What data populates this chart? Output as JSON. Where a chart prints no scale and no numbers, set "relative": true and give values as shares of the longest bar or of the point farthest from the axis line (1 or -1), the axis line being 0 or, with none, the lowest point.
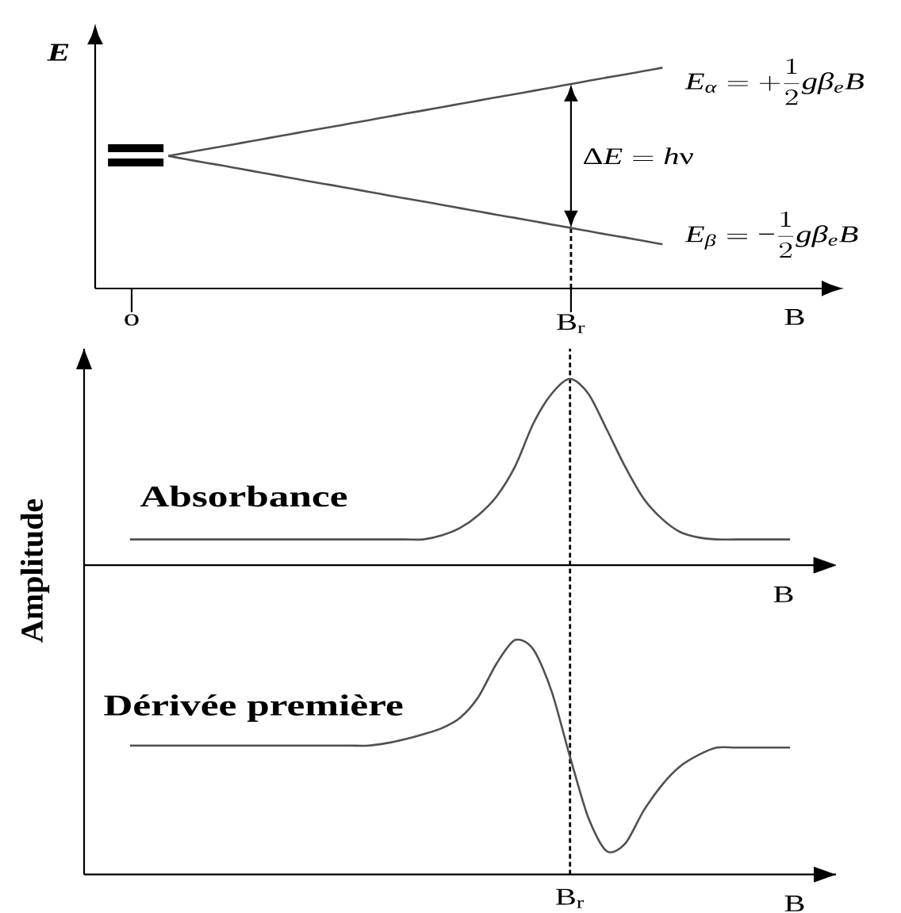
{
  "chart_data": [
    {
      "type": "line",
      "relative": true,
      "xlabel": "B",
      "ylabel": "E",
      "categories": [
        "o",
        null,
        null,
        null,
        null,
        null,
        null,
        null,
        null,
        null,
        null,
        null,
        null,
        null,
        null,
        null,
        null,
        null,
        null,
        null,
        null,
        null,
        null,
        null,
        "B$_{r}$",
        null,
        null,
        null,
        null,
        null
      ],
      "series": [
        {
          "name": "E_{\\alpha} = +\\frac{1}{2}g\\beta_{e}B",
          "color": "#505050",
          "values": [
            null,
            null,
            0.6,
            0.615,
            0.63,
            0.644,
            0.659,
            0.674,
            0.689,
            0.704,
            0.719,
            0.733,
            0.748,
            0.763,
            0.778,
            0.793,
            0.807,
            0.822,
            0.837,
            0.852,
            0.867,
            0.881,
            0.896,
            0.911,
            0.926,
            0.941,
            0.956,
            0.97,
            0.985,
            1.0
          ]
        },
        {
          "name": "E_{\\beta} = −\\frac{1}{2}g\\beta_{e}B",
          "color": "#505050",
          "values": [
            null,
            null,
            0.6,
            0.585,
            0.57,
            0.556,
            0.541,
            0.526,
            0.511,
            0.496,
            0.481,
            0.467,
            0.452,
            0.437,
            0.422,
            0.407,
            0.393,
            0.378,
            0.363,
            0.348,
            0.333,
            0.319,
            0.304,
            0.289,
            0.274,
            0.259,
            0.244,
            0.23,
            0.215,
            0.2
          ]
        }
      ],
      "annotations": [
        "\\Delta E = h\\nu"
      ],
      "ref_lines": [
        {
          "axis": "x",
          "value": "B$_{r}$",
          "line_style": "dashed",
          "color": "#000000"
        }
      ]
    },
    {
      "type": "line",
      "relative": true,
      "xlabel": "B",
      "ylabel": "Amplitude",
      "categories": [
        null,
        null,
        null,
        null,
        null,
        null,
        null,
        null,
        null,
        null,
        null,
        null,
        null,
        null,
        null,
        null,
        null,
        null,
        null,
        null,
        null,
        null,
        null,
        null,
        null,
        null,
        null,
        null,
        null,
        null,
        null,
        null,
        null,
        null,
        null,
        null,
        null,
        null,
        null,
        null,
        null
      ],
      "series": [
        {
          "name": "Absorbance",
          "color": "#505050",
          "values": [
            null,
            null,
            0.676,
            0.676,
            0.676,
            0.676,
            0.676,
            0.676,
            0.676,
            0.676,
            0.676,
            0.676,
            0.676,
            0.676,
            0.676,
            0.676,
            0.676,
            0.676,
            0.676,
            0.684,
            0.699,
            0.725,
            0.763,
            0.823,
            0.91,
            0.97,
            1.0,
            0.97,
            0.898,
            0.823,
            0.759,
            0.718,
            0.691,
            0.68,
            0.676,
            0.676,
            0.676,
            0.676,
            0.676,
            null,
            null
          ]
        },
        {
          "name": "Dérivée première",
          "color": "#505050",
          "values": [
            null,
            null,
            0.26,
            0.26,
            0.26,
            0.26,
            0.26,
            0.26,
            0.26,
            0.26,
            0.26,
            0.26,
            0.26,
            0.26,
            0.26,
            0.26,
            0.265,
            0.273,
            0.283,
            0.295,
            0.316,
            0.358,
            0.426,
            0.473,
            0.454,
            0.369,
            0.237,
            0.114,
            0.047,
            0.062,
            0.128,
            0.18,
            0.218,
            0.241,
            0.256,
            0.256,
            0.256,
            0.256,
            0.256,
            null,
            null
          ]
        }
      ],
      "annotations": [
        "B$_{r}$"
      ],
      "ref_lines": [
        {
          "axis": "y",
          "value": 0.624,
          "label": "B",
          "color": "#000000"
        }
      ]
    }
  ]
}
